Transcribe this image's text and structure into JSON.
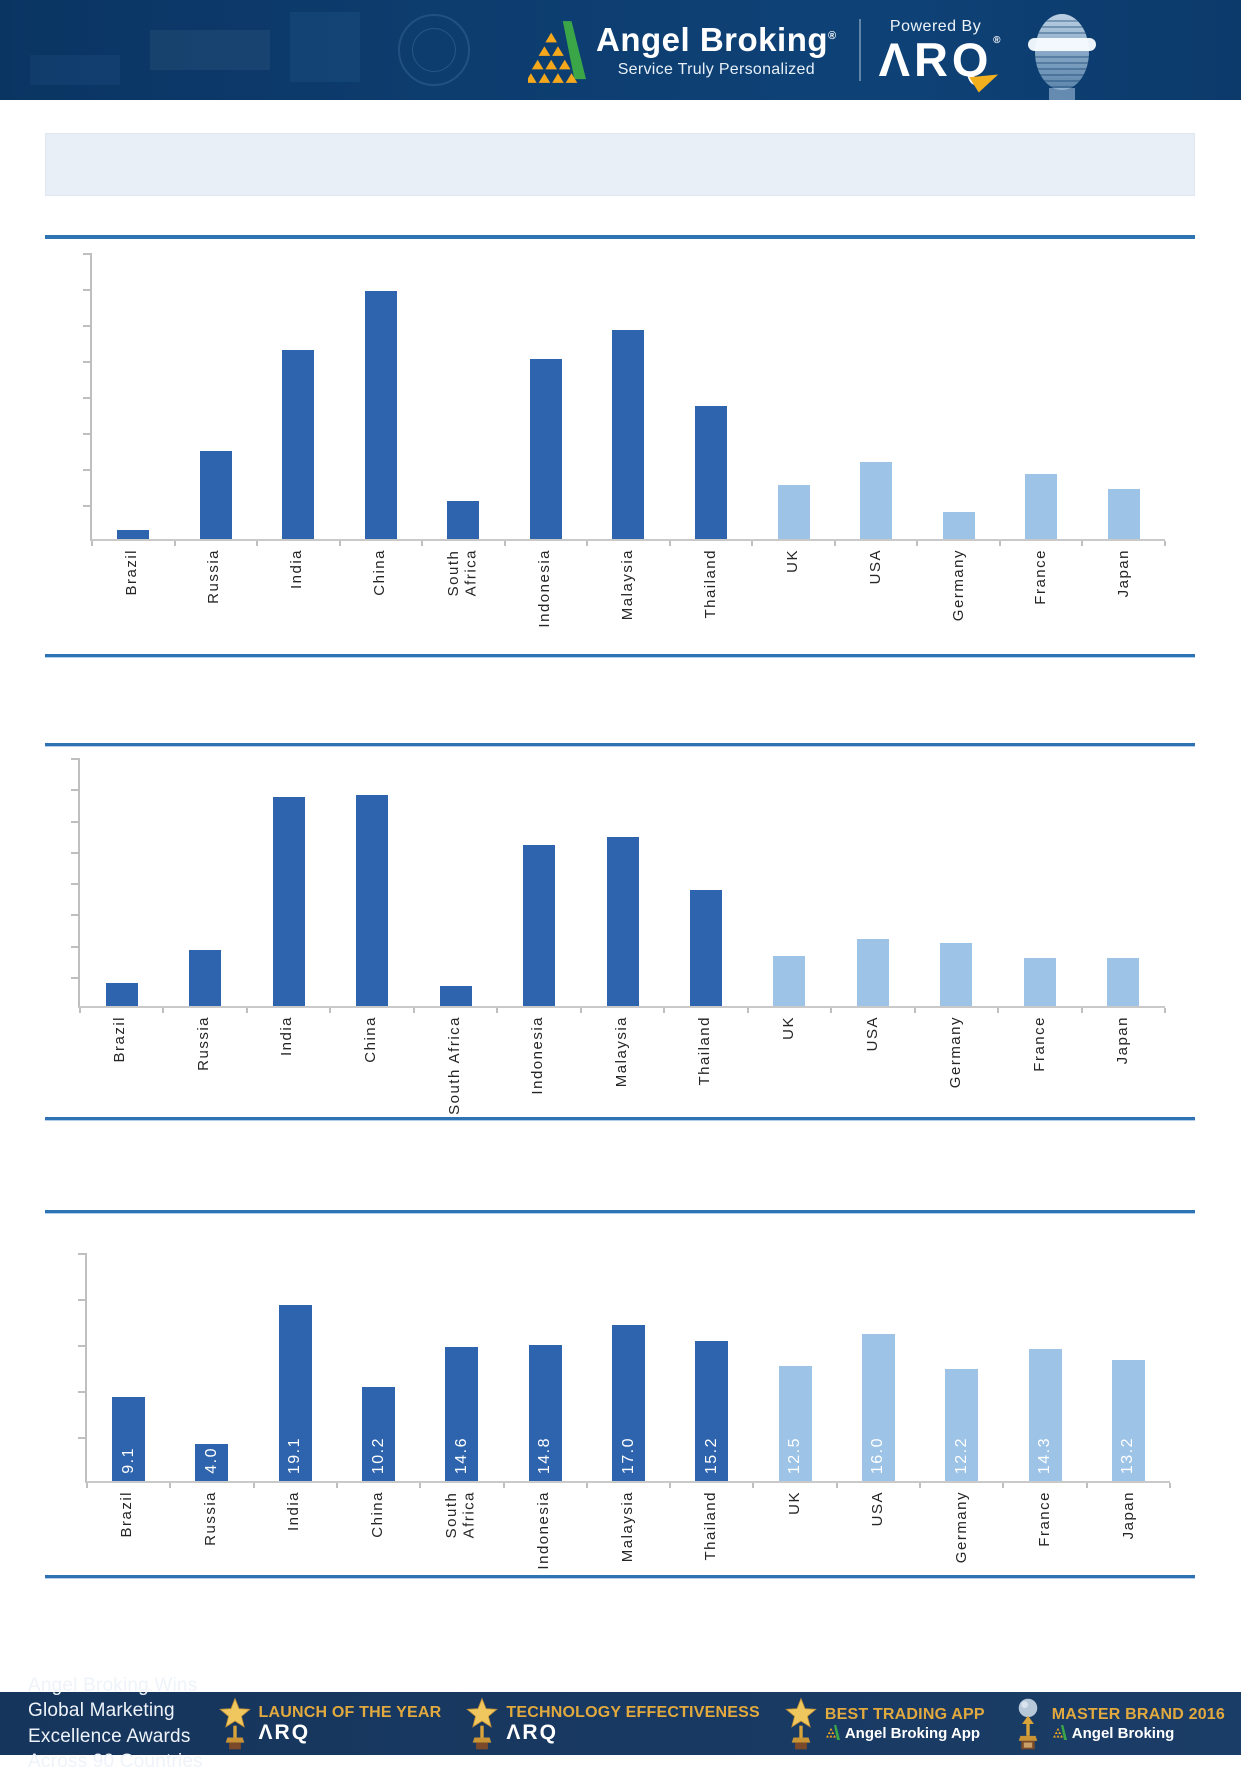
{
  "header": {
    "brand": "Angel Broking",
    "reg_mark": "®",
    "tagline": "Service Truly Personalized",
    "powered_by": "Powered By",
    "product": "ARQ"
  },
  "title_banner": {
    "text": ""
  },
  "chart_data": [
    {
      "type": "bar",
      "title": "",
      "xlabel": "",
      "ylabel": "",
      "categories": [
        "Brazil",
        "Russia",
        "India",
        "China",
        "South Africa",
        "Indonesia",
        "Malaysia",
        "Thailand",
        "UK",
        "USA",
        "Germany",
        "France",
        "Japan"
      ],
      "values": [
        0.25,
        2.45,
        5.25,
        6.9,
        1.05,
        5.0,
        5.8,
        3.7,
        1.5,
        2.15,
        0.75,
        1.8,
        1.4
      ],
      "values_estimated_from_pixels": true,
      "show_value_labels": false,
      "value_labels": [],
      "ylim": [
        0,
        8
      ],
      "y_tick_interval": 1,
      "axis_tick_labels_visible": false,
      "grid": "off",
      "legend": "none",
      "group_split_index": 8,
      "group_colors": {
        "first_group_dark_blue": "#2e64ad",
        "second_group_light_blue": "#9dc3e6"
      }
    },
    {
      "type": "bar",
      "title": "",
      "xlabel": "",
      "ylabel": "",
      "categories": [
        "Brazil",
        "Russia",
        "India",
        "China",
        "South Africa",
        "Indonesia",
        "Malaysia",
        "Thailand",
        "UK",
        "USA",
        "Germany",
        "France",
        "Japan"
      ],
      "values": [
        0.75,
        1.8,
        6.7,
        6.75,
        0.65,
        5.15,
        5.4,
        3.7,
        1.6,
        2.15,
        2.0,
        1.55,
        1.55
      ],
      "values_estimated_from_pixels": true,
      "show_value_labels": false,
      "value_labels": [],
      "ylim": [
        0,
        8
      ],
      "y_tick_interval": 1,
      "axis_tick_labels_visible": false,
      "grid": "off",
      "legend": "none",
      "group_split_index": 8,
      "group_colors": {
        "first_group_dark_blue": "#2e64ad",
        "second_group_light_blue": "#9dc3e6"
      }
    },
    {
      "type": "bar",
      "title": "",
      "xlabel": "",
      "ylabel": "",
      "categories": [
        "Brazil",
        "Russia",
        "India",
        "China",
        "South Africa",
        "Indonesia",
        "Malaysia",
        "Thailand",
        "UK",
        "USA",
        "Germany",
        "France",
        "Japan"
      ],
      "values": [
        9.1,
        4.0,
        19.1,
        10.2,
        14.6,
        14.8,
        17.0,
        15.2,
        12.5,
        16.0,
        12.2,
        14.3,
        13.2
      ],
      "values_estimated_from_pixels": false,
      "show_value_labels": true,
      "value_labels": [
        "9.1",
        "4.0",
        "19.1",
        "10.2",
        "14.6",
        "14.8",
        "17.0",
        "15.2",
        "12.5",
        "16.0",
        "12.2",
        "14.3",
        "13.2"
      ],
      "ylim": [
        0,
        25
      ],
      "y_tick_interval": 5,
      "axis_tick_labels_visible": false,
      "grid": "off",
      "legend": "none",
      "group_split_index": 8,
      "group_colors": {
        "first_group_dark_blue": "#2e64ad",
        "second_group_light_blue": "#9dc3e6"
      }
    }
  ],
  "footer": {
    "headline_line1": "Angel Broking Wins Global Marketing",
    "headline_line2": "Excellence Awards Across 90 Countries",
    "awards": [
      {
        "icon": "star-trophy",
        "title": "LAUNCH OF THE YEAR",
        "subtitle": "ARQ"
      },
      {
        "icon": "star-trophy",
        "title": "TECHNOLOGY EFFECTIVENESS",
        "subtitle": "ARQ"
      },
      {
        "icon": "star-trophy",
        "title": "BEST TRADING APP",
        "subtitle": "Angel Broking App"
      },
      {
        "icon": "globe-trophy",
        "title": "MASTER BRAND 2016",
        "subtitle": "Angel Broking"
      }
    ]
  },
  "colors": {
    "header_background": "#0d3c6e",
    "footer_background": "#17365c",
    "separator_blue": "#2e74b5",
    "title_banner_fill": "#e9eff7",
    "bar_dark": "#2e64ad",
    "bar_light": "#9dc3e6",
    "award_gold": "#e2a93e",
    "arq_arrow_gold": "#f2b01e"
  }
}
